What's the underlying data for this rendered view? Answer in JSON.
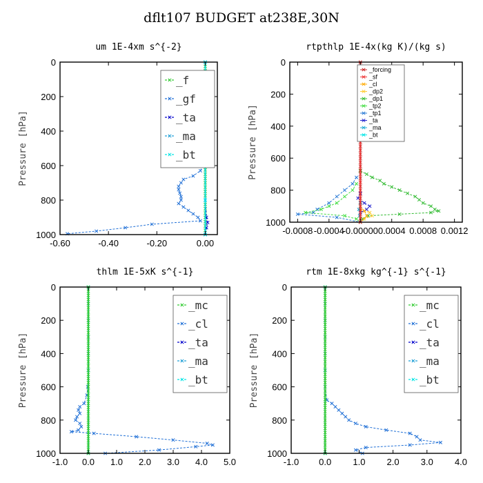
{
  "figure_title": "dflt107  BUDGET at238E,30N",
  "chart_data": [
    {
      "type": "line",
      "title": "um   1E-4xm s^{-2}",
      "ylabel": "Pressure [hPa]",
      "xlim": [
        -0.6,
        0.05
      ],
      "ylim": [
        1000,
        0
      ],
      "xticks": [
        -0.6,
        -0.4,
        -0.2,
        0.0
      ],
      "xtick_labels": [
        "-0.60",
        "-0.40",
        "-0.20",
        "0.00"
      ],
      "yticks": [
        0,
        200,
        400,
        600,
        800,
        1000
      ],
      "ytick_labels": [
        "0",
        "200",
        "400",
        "600",
        "800",
        "1000"
      ],
      "legend_style": "large",
      "legend": [
        "_f",
        "_gf",
        "_ta",
        "_ma",
        "_bt"
      ],
      "series": [
        {
          "name": "_f",
          "color": "#33cc33",
          "pressure": [
            0,
            25,
            50,
            75,
            100,
            125,
            150,
            175,
            200,
            225,
            250,
            275,
            300,
            325,
            350,
            375,
            400,
            425,
            450,
            475,
            500,
            525,
            550,
            575,
            600,
            625,
            650,
            675,
            700,
            725,
            750,
            775,
            800,
            825,
            850,
            875,
            900,
            925,
            950,
            975,
            1000
          ],
          "values": [
            0,
            0,
            0,
            0,
            0,
            0,
            0,
            0,
            0,
            0,
            0,
            0,
            0,
            0,
            0,
            0,
            0,
            0,
            0,
            0,
            0,
            0,
            0,
            0,
            0,
            0,
            0,
            0,
            0,
            0,
            0,
            0,
            0,
            0,
            0,
            0,
            0,
            0,
            0,
            0,
            0
          ]
        },
        {
          "name": "_gf",
          "color": "#1f6fd6",
          "pressure": [
            0,
            100,
            200,
            300,
            400,
            500,
            550,
            600,
            630,
            660,
            680,
            700,
            720,
            740,
            760,
            780,
            800,
            820,
            840,
            860,
            880,
            900,
            920,
            940,
            960,
            980,
            995
          ],
          "values": [
            0.0,
            0.0,
            -0.005,
            -0.005,
            -0.006,
            -0.008,
            -0.01,
            -0.012,
            -0.02,
            -0.05,
            -0.09,
            -0.1,
            -0.11,
            -0.11,
            -0.105,
            -0.1,
            -0.1,
            -0.11,
            -0.09,
            -0.07,
            -0.05,
            -0.03,
            -0.02,
            -0.22,
            -0.33,
            -0.45,
            -0.57
          ]
        },
        {
          "name": "_ta",
          "color": "#0000cc",
          "pressure": [
            0,
            200,
            400,
            600,
            800,
            900,
            930,
            960,
            1000
          ],
          "values": [
            0,
            0,
            0,
            0,
            0,
            0.005,
            0.01,
            0.005,
            0
          ]
        },
        {
          "name": "_ma",
          "color": "#1f9fd6",
          "pressure": [
            0,
            200,
            400,
            600,
            800,
            1000
          ],
          "values": [
            0,
            0,
            0,
            0,
            0,
            0
          ]
        },
        {
          "name": "_bt",
          "color": "#00e5e5",
          "pressure": [
            0,
            200,
            400,
            600,
            800,
            1000
          ],
          "values": [
            0,
            0,
            0,
            0,
            0,
            0
          ]
        }
      ]
    },
    {
      "type": "line",
      "title": "rtpthlp   1E-4x(kg K)/(kg s)",
      "ylabel": "Pressure [hPa]",
      "xlim": [
        -0.0009,
        0.0013
      ],
      "ylim": [
        1000,
        0
      ],
      "xticks": [
        -0.0008,
        -0.0004,
        0.0,
        0.0004,
        0.0008,
        0.0012
      ],
      "xtick_labels": [
        "-0.0008",
        "-0.0004",
        "-0.00000",
        "0.0004",
        "0.0008",
        "0.0012"
      ],
      "yticks": [
        0,
        200,
        400,
        600,
        800,
        1000
      ],
      "ytick_labels": [
        "0",
        "200",
        "400",
        "600",
        "800",
        "1000"
      ],
      "legend_style": "small",
      "legend": [
        "_forcing",
        "_sf",
        "_cl",
        "_dp2",
        "_dp1",
        "_tp2",
        "_tp1",
        "_ta",
        "_ma",
        "_bt"
      ],
      "series": [
        {
          "name": "_dp1",
          "color": "#33bb33",
          "pressure": [
            680,
            700,
            720,
            740,
            760,
            780,
            800,
            820,
            840,
            860,
            880,
            900,
            920,
            930,
            940,
            950,
            960,
            980,
            1000
          ],
          "values": [
            0.0,
            8e-05,
            0.00015,
            0.00025,
            0.0003,
            0.0004,
            0.0005,
            0.0006,
            0.0007,
            0.00075,
            0.0008,
            0.0009,
            0.00095,
            0.001,
            0.0009,
            0.0005,
            0.0001,
            3e-05,
            0.0
          ]
        },
        {
          "name": "_tp1",
          "color": "#2a7bd6",
          "pressure": [
            720,
            760,
            800,
            840,
            880,
            920,
            940,
            950,
            970,
            1000
          ],
          "values": [
            -5e-05,
            -0.0001,
            -0.0002,
            -0.0003,
            -0.0004,
            -0.00055,
            -0.0006,
            -0.0008,
            -0.0003,
            0.0
          ]
        },
        {
          "name": "_tp2",
          "color": "#44dd44",
          "pressure": [
            760,
            800,
            840,
            880,
            900,
            920,
            940,
            960,
            980,
            1000
          ],
          "values": [
            -5e-05,
            -0.0001,
            -0.0002,
            -0.0003,
            -0.0004,
            -0.0005,
            -0.0007,
            -0.0002,
            -5e-05,
            0.0
          ]
        },
        {
          "name": "_ta",
          "color": "#2222cc",
          "pressure": [
            820,
            850,
            880,
            900,
            920,
            940
          ],
          "values": [
            0.0,
            -3e-05,
            5e-05,
            0.00012,
            8e-05,
            0.0
          ]
        },
        {
          "name": "_dp2",
          "color": "#ffcc33",
          "pressure": [
            920,
            940,
            960,
            980,
            1000
          ],
          "values": [
            0.0,
            0.00012,
            0.00015,
            5e-05,
            0.0
          ]
        },
        {
          "name": "_cl",
          "color": "#ffaa00",
          "pressure": [
            900,
            930,
            960,
            1000
          ],
          "values": [
            0.0,
            5e-05,
            8e-05,
            0.0
          ]
        },
        {
          "name": "_ma",
          "color": "#1faad6",
          "pressure": [
            880,
            920,
            960,
            1000
          ],
          "values": [
            0.0,
            -2e-05,
            -1e-05,
            0.0
          ]
        },
        {
          "name": "_bt",
          "color": "#00e5e5",
          "pressure": [
            0,
            500,
            1000
          ],
          "values": [
            0,
            0,
            0
          ]
        },
        {
          "name": "_forcing",
          "color": "#cc2222",
          "pressure": [
            0,
            25,
            50,
            75,
            100,
            125,
            150,
            175,
            200,
            225,
            250,
            275,
            300,
            325,
            350,
            375,
            400,
            425,
            450,
            475,
            500,
            525,
            550,
            575,
            600,
            625,
            650,
            675,
            700,
            725,
            750,
            775,
            800,
            825,
            850,
            875,
            900,
            925,
            950,
            975,
            1000
          ],
          "values": [
            0,
            0,
            0,
            0,
            0,
            0,
            0,
            0,
            0,
            0,
            0,
            0,
            0,
            0,
            0,
            0,
            0,
            0,
            0,
            0,
            0,
            0,
            0,
            0,
            0,
            0,
            0,
            0,
            0,
            0,
            0,
            0,
            0,
            0,
            0,
            0,
            0,
            0,
            0,
            0,
            0
          ]
        },
        {
          "name": "_sf",
          "color": "#ee3333",
          "pressure": [
            0,
            250,
            500,
            750,
            1000
          ],
          "values": [
            0,
            0,
            0,
            0,
            0
          ]
        }
      ]
    },
    {
      "type": "line",
      "title": "thlm   1E-5xK s^{-1}",
      "ylabel": "Pressure [hPa]",
      "xlim": [
        -1.0,
        5.0
      ],
      "ylim": [
        1000,
        0
      ],
      "xticks": [
        -1.0,
        0.0,
        1.0,
        2.0,
        3.0,
        4.0,
        5.0
      ],
      "xtick_labels": [
        "-1.0",
        "0.0",
        "1.0",
        "2.0",
        "3.0",
        "4.0",
        "5.0"
      ],
      "yticks": [
        0,
        200,
        400,
        600,
        800,
        1000
      ],
      "ytick_labels": [
        "0",
        "200",
        "400",
        "600",
        "800",
        "1000"
      ],
      "legend_style": "large",
      "legend": [
        "_mc",
        "_cl",
        "_ta",
        "_ma",
        "_bt"
      ],
      "series": [
        {
          "name": "_cl",
          "color": "#1f6fd6",
          "pressure": [
            0,
            100,
            200,
            300,
            400,
            500,
            600,
            650,
            700,
            720,
            740,
            760,
            780,
            800,
            820,
            840,
            860,
            870,
            880,
            900,
            920,
            940,
            950,
            960,
            980,
            1000
          ],
          "values": [
            0.0,
            0.0,
            0.0,
            0.0,
            0.0,
            0.0,
            -0.02,
            -0.05,
            -0.15,
            -0.3,
            -0.35,
            -0.3,
            -0.4,
            -0.45,
            -0.3,
            -0.25,
            -0.35,
            -0.6,
            0.2,
            1.7,
            3.0,
            4.2,
            4.4,
            3.8,
            2.5,
            0.6
          ]
        },
        {
          "name": "_ta",
          "color": "#0000cc",
          "pressure": [
            0,
            500,
            1000
          ],
          "values": [
            0,
            0,
            0
          ]
        },
        {
          "name": "_ma",
          "color": "#1f9fd6",
          "pressure": [
            0,
            500,
            1000
          ],
          "values": [
            0,
            0,
            0
          ]
        },
        {
          "name": "_bt",
          "color": "#00e5e5",
          "pressure": [
            0,
            500,
            1000
          ],
          "values": [
            0,
            0,
            0
          ]
        },
        {
          "name": "_mc",
          "color": "#33cc33",
          "pressure": [
            0,
            25,
            50,
            75,
            100,
            125,
            150,
            175,
            200,
            225,
            250,
            275,
            300,
            325,
            350,
            375,
            400,
            425,
            450,
            475,
            500,
            525,
            550,
            575,
            600,
            625,
            650,
            675,
            700,
            725,
            750,
            775,
            800,
            825,
            850,
            875,
            900,
            925,
            950,
            975,
            1000
          ],
          "values": [
            0,
            0,
            0,
            0,
            0,
            0,
            0,
            0,
            0,
            0,
            0,
            0,
            0,
            0,
            0,
            0,
            0,
            0,
            0,
            0,
            0,
            0,
            0,
            0,
            0,
            0,
            0,
            0,
            0,
            0,
            0,
            0,
            0,
            0,
            0,
            0,
            0,
            0,
            0,
            0,
            0
          ]
        }
      ]
    },
    {
      "type": "line",
      "title": "rtm   1E-8xkg kg^{-1} s^{-1}",
      "ylabel": "Pressure [hPa]",
      "xlim": [
        -1.0,
        4.0
      ],
      "ylim": [
        1000,
        0
      ],
      "xticks": [
        -1.0,
        0.0,
        1.0,
        2.0,
        3.0,
        4.0
      ],
      "xtick_labels": [
        "-1.0",
        "0.0",
        "1.0",
        "2.0",
        "3.0",
        "4.0"
      ],
      "yticks": [
        0,
        200,
        400,
        600,
        800,
        1000
      ],
      "ytick_labels": [
        "0",
        "200",
        "400",
        "600",
        "800",
        "1000"
      ],
      "legend_style": "large",
      "legend": [
        "_mc",
        "_cl",
        "_ta",
        "_ma",
        "_bt"
      ],
      "series": [
        {
          "name": "_cl",
          "color": "#1f6fd6",
          "pressure": [
            0,
            100,
            200,
            300,
            400,
            500,
            600,
            680,
            700,
            720,
            740,
            760,
            780,
            800,
            820,
            840,
            860,
            880,
            900,
            920,
            935,
            950,
            965,
            980,
            1000
          ],
          "values": [
            0.0,
            0.0,
            0.0,
            0.0,
            0.0,
            0.0,
            0.0,
            0.05,
            0.2,
            0.3,
            0.4,
            0.5,
            0.6,
            0.7,
            0.9,
            1.2,
            1.8,
            2.5,
            2.7,
            2.8,
            3.4,
            2.5,
            1.2,
            0.9,
            1.1
          ]
        },
        {
          "name": "_ta",
          "color": "#0000cc",
          "pressure": [
            0,
            500,
            1000
          ],
          "values": [
            0,
            0,
            0
          ]
        },
        {
          "name": "_ma",
          "color": "#1f9fd6",
          "pressure": [
            0,
            500,
            1000
          ],
          "values": [
            0,
            0,
            0
          ]
        },
        {
          "name": "_bt",
          "color": "#00e5e5",
          "pressure": [
            0,
            500,
            1000
          ],
          "values": [
            0,
            0,
            0
          ]
        },
        {
          "name": "_mc",
          "color": "#33cc33",
          "pressure": [
            0,
            25,
            50,
            75,
            100,
            125,
            150,
            175,
            200,
            225,
            250,
            275,
            300,
            325,
            350,
            375,
            400,
            425,
            450,
            475,
            500,
            525,
            550,
            575,
            600,
            625,
            650,
            675,
            700,
            725,
            750,
            775,
            800,
            825,
            850,
            875,
            900,
            925,
            950,
            975,
            1000
          ],
          "values": [
            0,
            0,
            0,
            0,
            0,
            0,
            0,
            0,
            0,
            0,
            0,
            0,
            0,
            0,
            0,
            0,
            0,
            0,
            0,
            0,
            0,
            0,
            0,
            0,
            0,
            0,
            0,
            0,
            0,
            0,
            0,
            0,
            0,
            0,
            0,
            0,
            0,
            0,
            0,
            0,
            0
          ]
        }
      ]
    }
  ]
}
